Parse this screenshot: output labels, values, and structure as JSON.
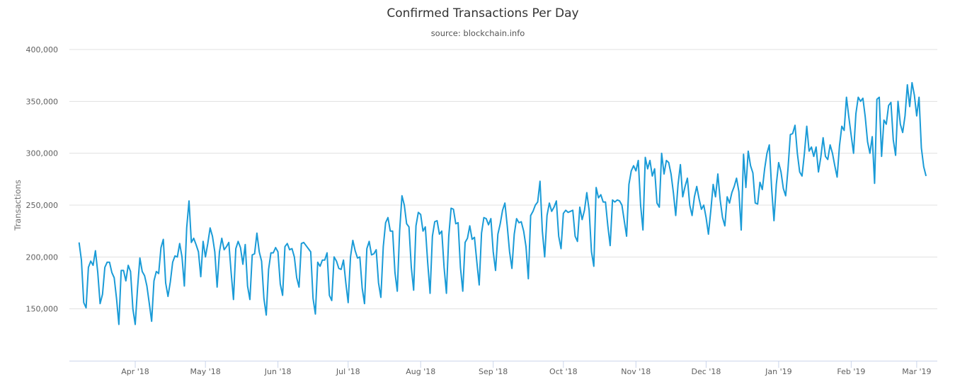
{
  "chart_data": {
    "type": "line",
    "title": "Confirmed Transactions Per Day",
    "subtitle": "source: blockchain.info",
    "xlabel": "",
    "ylabel": "Transactions",
    "ylim": [
      100000,
      400000
    ],
    "yticks": [
      150000,
      200000,
      250000,
      300000,
      350000,
      400000
    ],
    "ytick_labels": [
      "150,000",
      "200,000",
      "250,000",
      "300,000",
      "350,000",
      "400,000"
    ],
    "grid": true,
    "legend": "none",
    "line_color": "#1a9bd7",
    "start_date": "2018-03-08",
    "x_ticks": [
      {
        "label": "Apr '18",
        "date": "2018-04-01"
      },
      {
        "label": "May '18",
        "date": "2018-05-01"
      },
      {
        "label": "Jun '18",
        "date": "2018-06-01"
      },
      {
        "label": "Jul '18",
        "date": "2018-07-01"
      },
      {
        "label": "Aug '18",
        "date": "2018-08-01"
      },
      {
        "label": "Sep '18",
        "date": "2018-09-01"
      },
      {
        "label": "Oct '18",
        "date": "2018-10-01"
      },
      {
        "label": "Nov '18",
        "date": "2018-11-01"
      },
      {
        "label": "Dec '18",
        "date": "2018-12-01"
      },
      {
        "label": "Jan '19",
        "date": "2019-01-01"
      },
      {
        "label": "Feb '19",
        "date": "2019-02-01"
      },
      {
        "label": "Mar '19",
        "date": "2019-03-01"
      }
    ],
    "series": [
      {
        "name": "Transactions",
        "values": [
          214000,
          197000,
          156000,
          151000,
          190000,
          196000,
          192000,
          206000,
          185000,
          155000,
          164000,
          190000,
          195000,
          195000,
          185000,
          180000,
          160000,
          135000,
          187000,
          187000,
          177000,
          192000,
          186000,
          150000,
          135000,
          170000,
          199000,
          186000,
          182000,
          172000,
          155000,
          138000,
          177000,
          186000,
          184000,
          209000,
          217000,
          175000,
          162000,
          176000,
          195000,
          201000,
          200000,
          213000,
          200000,
          172000,
          228000,
          254000,
          214000,
          218000,
          212000,
          205000,
          181000,
          215000,
          200000,
          213000,
          228000,
          220000,
          205000,
          171000,
          205000,
          218000,
          207000,
          210000,
          214000,
          185000,
          159000,
          208000,
          215000,
          209000,
          193000,
          212000,
          172000,
          159000,
          202000,
          203000,
          223000,
          205000,
          196000,
          160000,
          144000,
          188000,
          204000,
          204000,
          209000,
          205000,
          174000,
          163000,
          210000,
          213000,
          207000,
          208000,
          200000,
          180000,
          171000,
          213000,
          214000,
          211000,
          208000,
          205000,
          160000,
          145000,
          195000,
          191000,
          197000,
          197000,
          204000,
          163000,
          158000,
          200000,
          196000,
          189000,
          188000,
          197000,
          175000,
          156000,
          200000,
          216000,
          206000,
          199000,
          200000,
          170000,
          155000,
          208000,
          215000,
          202000,
          203000,
          207000,
          175000,
          161000,
          210000,
          233000,
          238000,
          225000,
          225000,
          185000,
          167000,
          225000,
          259000,
          250000,
          232000,
          229000,
          190000,
          168000,
          230000,
          243000,
          241000,
          225000,
          229000,
          195000,
          165000,
          220000,
          234000,
          235000,
          222000,
          225000,
          190000,
          165000,
          220000,
          247000,
          246000,
          232000,
          233000,
          190000,
          167000,
          214000,
          218000,
          230000,
          217000,
          219000,
          195000,
          173000,
          223000,
          238000,
          237000,
          231000,
          237000,
          205000,
          187000,
          222000,
          232000,
          245000,
          252000,
          230000,
          205000,
          189000,
          222000,
          237000,
          233000,
          234000,
          225000,
          210000,
          179000,
          240000,
          244000,
          250000,
          253000,
          273000,
          225000,
          200000,
          240000,
          252000,
          244000,
          248000,
          254000,
          220000,
          208000,
          242000,
          245000,
          243000,
          244000,
          245000,
          220000,
          215000,
          248000,
          236000,
          245000,
          262000,
          245000,
          205000,
          191000,
          267000,
          257000,
          260000,
          253000,
          253000,
          230000,
          211000,
          255000,
          253000,
          255000,
          254000,
          250000,
          235000,
          220000,
          270000,
          283000,
          288000,
          283000,
          293000,
          250000,
          226000,
          296000,
          285000,
          293000,
          278000,
          285000,
          252000,
          248000,
          300000,
          280000,
          293000,
          291000,
          280000,
          262000,
          240000,
          270000,
          289000,
          258000,
          268000,
          276000,
          250000,
          240000,
          258000,
          268000,
          256000,
          246000,
          250000,
          238000,
          222000,
          245000,
          270000,
          258000,
          280000,
          255000,
          238000,
          230000,
          258000,
          252000,
          262000,
          268000,
          276000,
          263000,
          226000,
          299000,
          267000,
          302000,
          288000,
          281000,
          252000,
          251000,
          272000,
          265000,
          285000,
          300000,
          308000,
          266000,
          235000,
          270000,
          291000,
          282000,
          266000,
          259000,
          285000,
          318000,
          319000,
          327000,
          300000,
          282000,
          278000,
          300000,
          326000,
          302000,
          306000,
          297000,
          306000,
          282000,
          296000,
          315000,
          297000,
          294000,
          308000,
          300000,
          288000,
          277000,
          307000,
          326000,
          322000,
          354000,
          335000,
          317000,
          300000,
          338000,
          354000,
          350000,
          353000,
          335000,
          311000,
          300000,
          316000,
          271000,
          352000,
          354000,
          297000,
          332000,
          328000,
          346000,
          349000,
          313000,
          298000,
          350000,
          328000,
          320000,
          336000,
          366000,
          345000,
          368000,
          356000,
          336000,
          354000,
          305000,
          287000,
          278000
        ]
      }
    ]
  }
}
